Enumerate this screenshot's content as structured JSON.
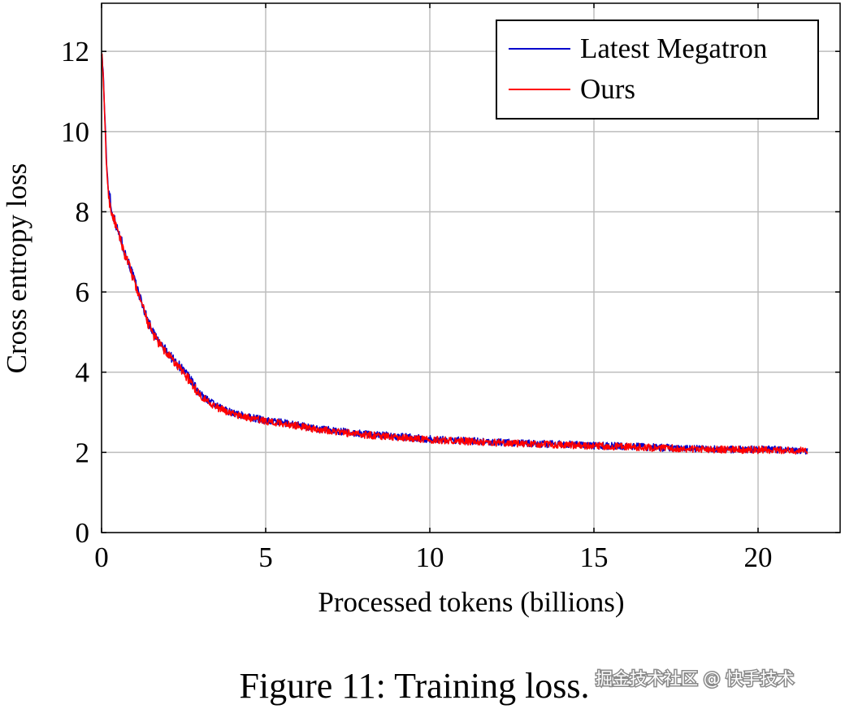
{
  "chart_data": {
    "type": "line",
    "title": "",
    "xlabel": "Processed tokens (billions)",
    "ylabel": "Cross entropy loss",
    "xlim": [
      0,
      22.5
    ],
    "ylim": [
      0,
      13.2
    ],
    "grid": true,
    "legend_position": "top-right",
    "x_ticks": [
      0,
      5,
      10,
      15,
      20
    ],
    "y_ticks": [
      0,
      2,
      4,
      6,
      8,
      10,
      12
    ],
    "x_tick_labels": [
      "0",
      "5",
      "10",
      "15",
      "20"
    ],
    "y_tick_labels": [
      "0",
      "2",
      "4",
      "6",
      "8",
      "10",
      "12"
    ],
    "series": [
      {
        "name": "Latest Megatron",
        "color": "#0000cc",
        "x": [
          0,
          0.05,
          0.1,
          0.15,
          0.2,
          0.25,
          0.3,
          0.4,
          0.5,
          0.6,
          0.7,
          0.8,
          1.0,
          1.2,
          1.4,
          1.6,
          1.8,
          2.0,
          2.2,
          2.5,
          2.8,
          3.0,
          3.5,
          4.0,
          4.5,
          5.0,
          5.5,
          6.0,
          6.5,
          7.0,
          7.5,
          8.0,
          9.0,
          10.0,
          11.0,
          12.0,
          13.0,
          14.0,
          15.0,
          16.0,
          17.0,
          18.0,
          19.0,
          20.0,
          21.0,
          21.5
        ],
        "y": [
          12.0,
          11.5,
          10.3,
          9.3,
          8.6,
          8.5,
          8.0,
          7.8,
          7.5,
          7.3,
          7.0,
          6.8,
          6.3,
          5.8,
          5.3,
          4.95,
          4.7,
          4.5,
          4.3,
          4.05,
          3.7,
          3.45,
          3.15,
          2.98,
          2.88,
          2.8,
          2.74,
          2.68,
          2.6,
          2.56,
          2.5,
          2.46,
          2.4,
          2.33,
          2.3,
          2.25,
          2.22,
          2.2,
          2.17,
          2.15,
          2.12,
          2.1,
          2.08,
          2.07,
          2.06,
          2.05
        ]
      },
      {
        "name": "Ours",
        "color": "#ff0000",
        "x": [
          0,
          0.05,
          0.1,
          0.15,
          0.2,
          0.25,
          0.3,
          0.4,
          0.5,
          0.6,
          0.7,
          0.8,
          1.0,
          1.2,
          1.4,
          1.6,
          1.8,
          2.0,
          2.2,
          2.5,
          2.8,
          3.0,
          3.5,
          4.0,
          4.5,
          5.0,
          5.5,
          6.0,
          6.5,
          7.0,
          7.5,
          8.0,
          9.0,
          10.0,
          11.0,
          12.0,
          13.0,
          14.0,
          15.0,
          16.0,
          17.0,
          18.0,
          19.0,
          20.0,
          21.0,
          21.5
        ],
        "y": [
          12.0,
          11.4,
          10.2,
          9.2,
          8.5,
          8.2,
          8.0,
          7.75,
          7.45,
          7.25,
          6.95,
          6.75,
          6.25,
          5.75,
          5.25,
          4.9,
          4.65,
          4.45,
          4.25,
          4.0,
          3.65,
          3.42,
          3.12,
          2.96,
          2.86,
          2.78,
          2.72,
          2.66,
          2.58,
          2.54,
          2.48,
          2.44,
          2.38,
          2.32,
          2.28,
          2.24,
          2.21,
          2.19,
          2.16,
          2.14,
          2.11,
          2.09,
          2.07,
          2.06,
          2.05,
          2.04
        ]
      }
    ]
  },
  "caption": "Figure 11: Training loss.",
  "watermark": "掘金技术社区 @ 快手技术"
}
